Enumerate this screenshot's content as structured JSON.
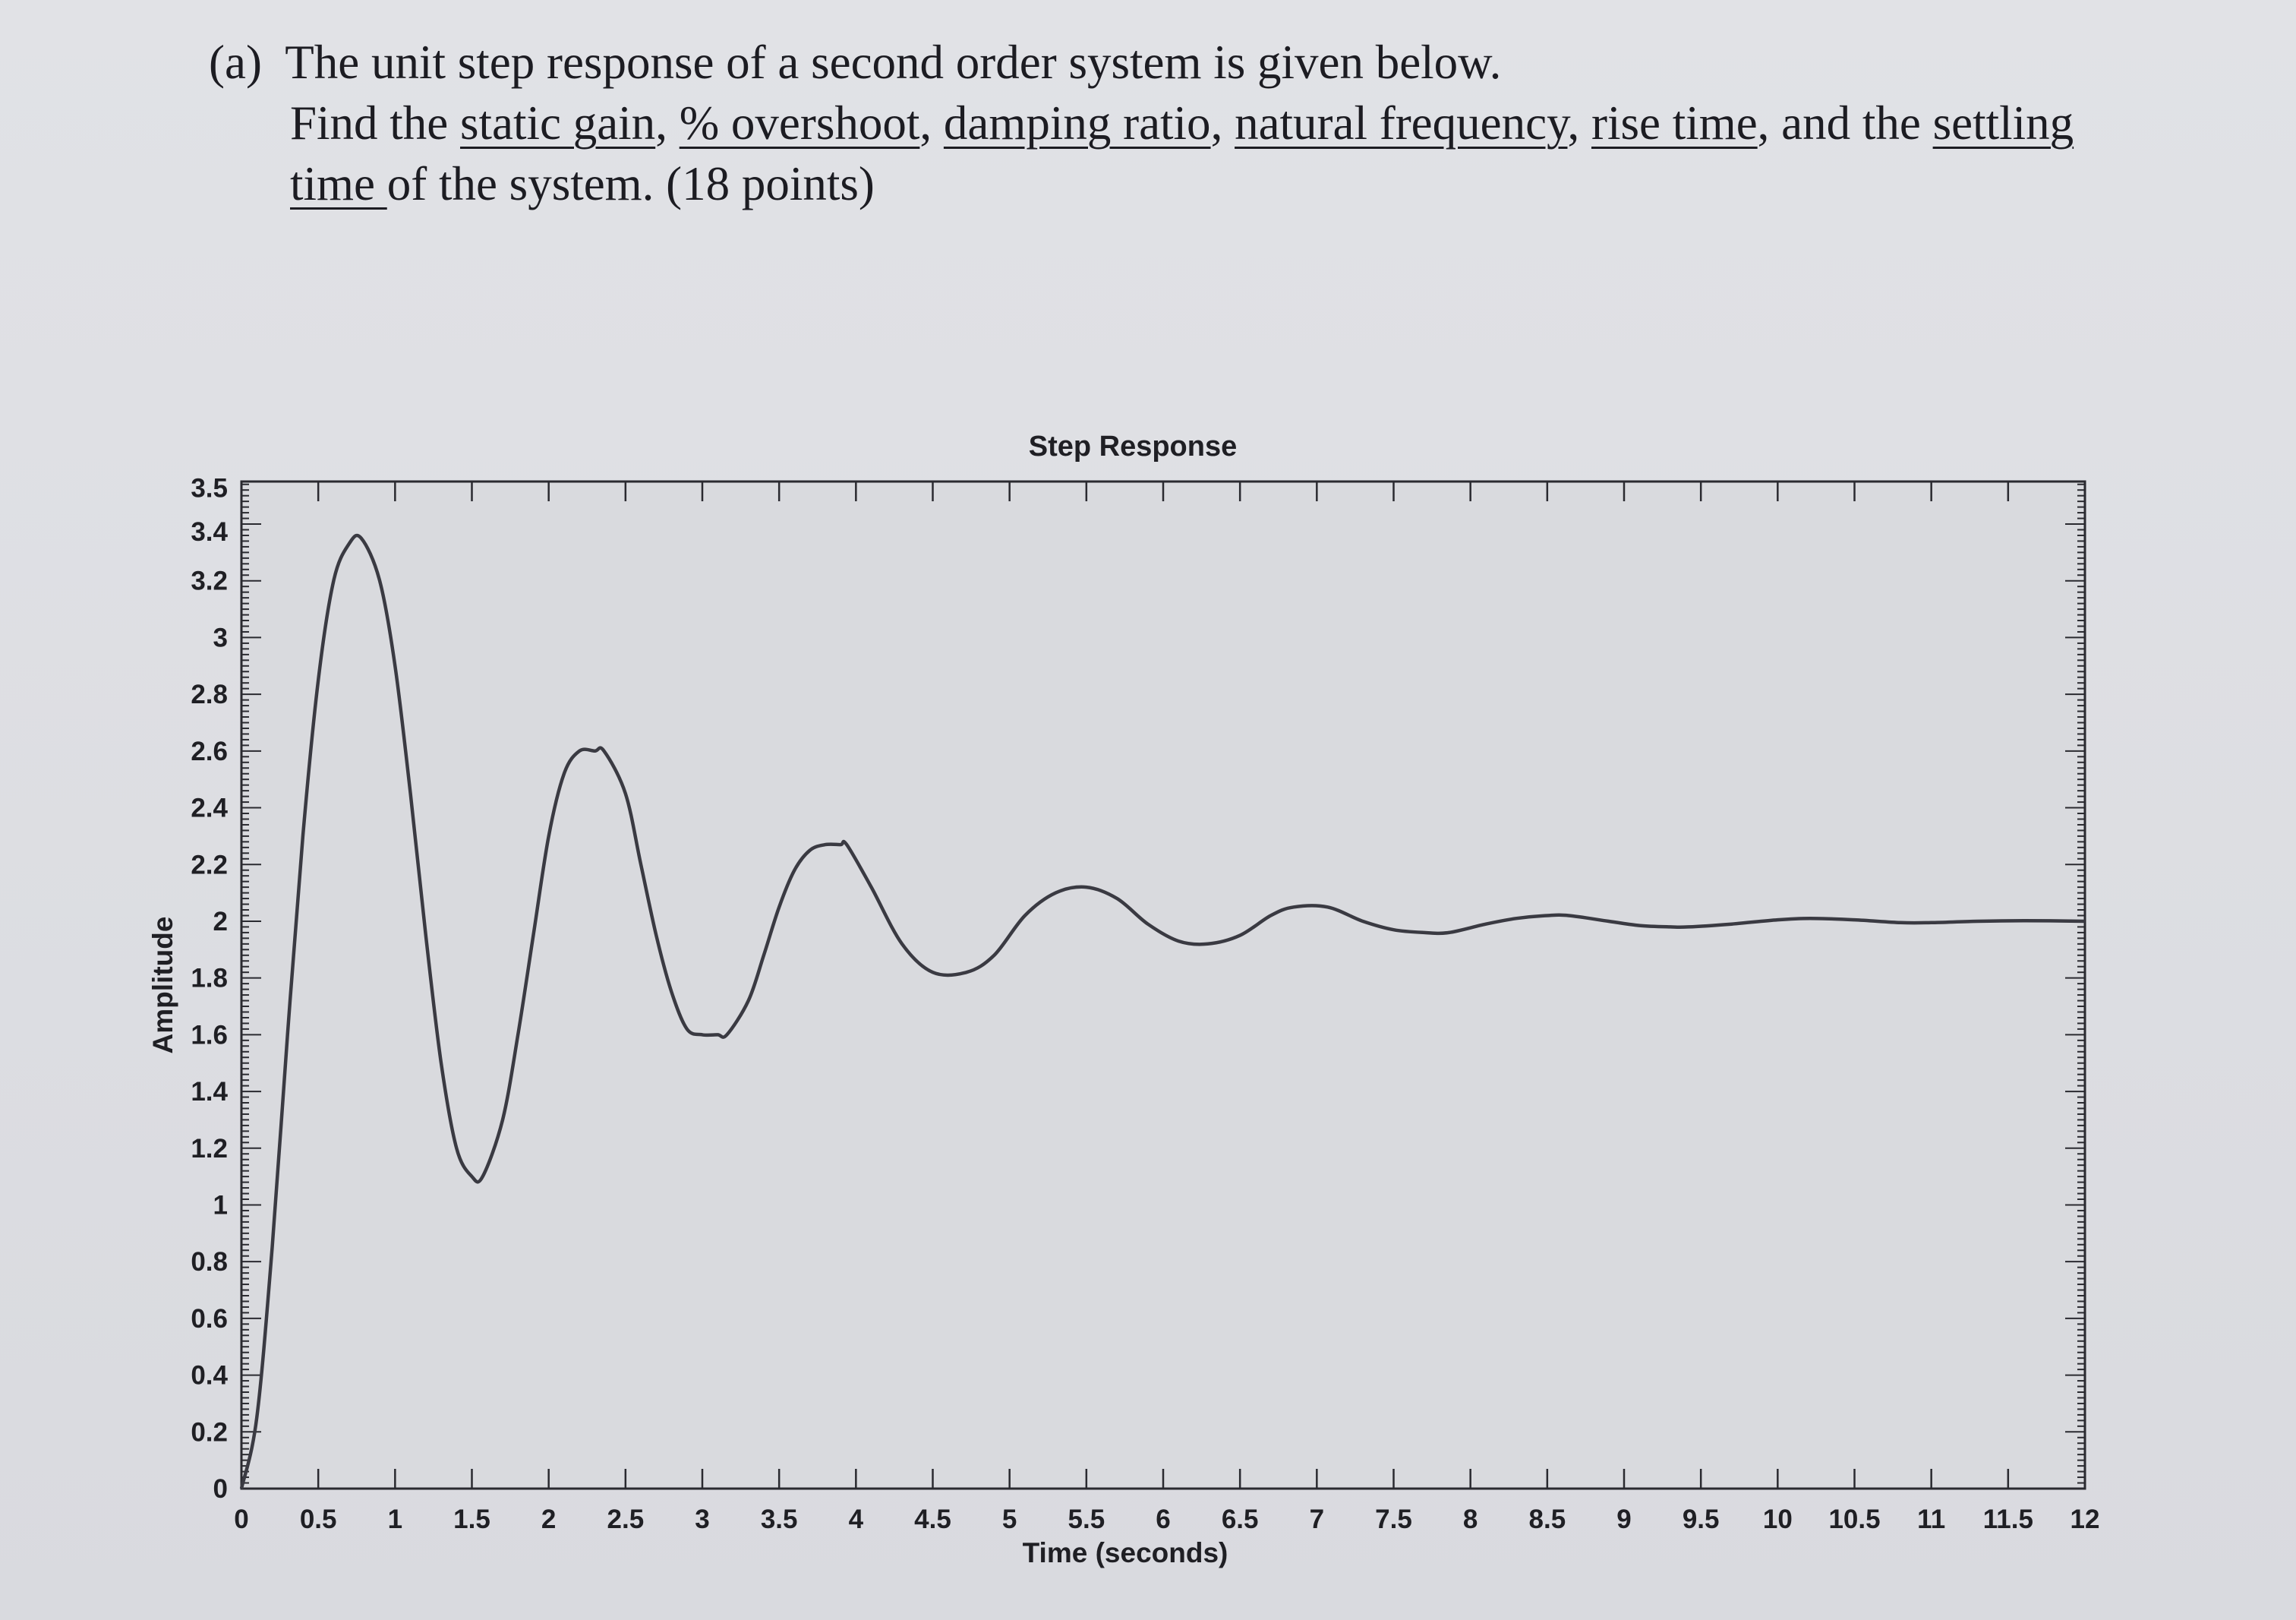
{
  "question": {
    "label": "(a)",
    "line1": "The unit step response of a second order system is given below.",
    "line2": {
      "prefix": "Find the ",
      "t1": "static gain",
      "s1": ", ",
      "t2": "% overshoot",
      "s2": ", ",
      "t3": "damping ratio",
      "s3": ", ",
      "t4": "natural frequency",
      "s4": ", ",
      "t5": "rise time",
      "s5": ", and the ",
      "t6": "settling"
    },
    "line3": {
      "t1": "time ",
      "rest": "of the system. (18 points)"
    }
  },
  "chart_data": {
    "type": "line",
    "title": "Step Response",
    "xlabel": "Time (seconds)",
    "ylabel": "Amplitude",
    "xlim": [
      0,
      12
    ],
    "ylim": [
      0,
      3.55
    ],
    "grid": "dotted",
    "x_ticks": [
      0,
      0.5,
      1,
      1.5,
      2,
      2.5,
      3,
      3.5,
      4,
      4.5,
      5,
      5.5,
      6,
      6.5,
      7,
      7.5,
      8,
      8.5,
      9,
      9.5,
      10,
      10.5,
      11,
      11.5,
      12
    ],
    "x_tick_labels": [
      "0",
      "0.5",
      "1",
      "1.5",
      "2",
      "2.5",
      "3",
      "3.5",
      "4",
      "4.5",
      "5",
      "5.5",
      "6",
      "6.5",
      "7",
      "7.5",
      "8",
      "8.5",
      "9",
      "9.5",
      "10",
      "10.5",
      "11",
      "11.5",
      "12"
    ],
    "y_ticks": [
      0,
      0.2,
      0.4,
      0.6,
      0.8,
      1,
      1.2,
      1.4,
      1.6,
      1.8,
      2,
      2.2,
      2.4,
      2.6,
      2.8,
      3,
      3.2,
      3.4,
      3.5
    ],
    "y_tick_labels": [
      "0",
      "0.2",
      "0.4",
      "0.6",
      "0.8",
      "1",
      "1.2",
      "1.4",
      "1.6",
      "1.8",
      "2",
      "2.2",
      "2.4",
      "2.6",
      "2.8",
      "3",
      "3.2",
      "3.4",
      "3.5"
    ],
    "series": [
      {
        "x": [
          0,
          0.1,
          0.2,
          0.3,
          0.4,
          0.5,
          0.6,
          0.7,
          0.78,
          0.9,
          1.0,
          1.1,
          1.2,
          1.3,
          1.4,
          1.5,
          1.57,
          1.7,
          1.8,
          1.9,
          2.0,
          2.1,
          2.2,
          2.3,
          2.36,
          2.5,
          2.6,
          2.7,
          2.8,
          2.9,
          3.0,
          3.1,
          3.16,
          3.3,
          3.4,
          3.5,
          3.6,
          3.7,
          3.8,
          3.9,
          3.94,
          4.1,
          4.3,
          4.5,
          4.72,
          4.9,
          5.1,
          5.3,
          5.5,
          5.7,
          5.9,
          6.1,
          6.29,
          6.5,
          6.7,
          6.85,
          7.07,
          7.3,
          7.5,
          7.7,
          7.86,
          8.1,
          8.3,
          8.5,
          8.64,
          8.9,
          9.1,
          9.3,
          9.42,
          9.7,
          10.0,
          10.21,
          10.5,
          10.8,
          11.0,
          11.3,
          11.6,
          12.0
        ],
        "y": [
          0,
          0.25,
          0.85,
          1.6,
          2.3,
          2.85,
          3.2,
          3.33,
          3.35,
          3.2,
          2.9,
          2.45,
          1.95,
          1.5,
          1.2,
          1.1,
          1.1,
          1.3,
          1.6,
          1.95,
          2.3,
          2.52,
          2.6,
          2.6,
          2.6,
          2.45,
          2.2,
          1.95,
          1.75,
          1.62,
          1.6,
          1.6,
          1.6,
          1.72,
          1.88,
          2.05,
          2.18,
          2.25,
          2.27,
          2.27,
          2.27,
          2.12,
          1.92,
          1.82,
          1.82,
          1.88,
          2.02,
          2.1,
          2.12,
          2.08,
          1.99,
          1.93,
          1.92,
          1.95,
          2.02,
          2.05,
          2.05,
          2.0,
          1.97,
          1.96,
          1.96,
          1.99,
          2.01,
          2.02,
          2.02,
          2.0,
          1.985,
          1.98,
          1.98,
          1.99,
          2.005,
          2.01,
          2.005,
          1.995,
          1.995,
          2.0,
          2.002,
          2.0
        ]
      }
    ]
  }
}
